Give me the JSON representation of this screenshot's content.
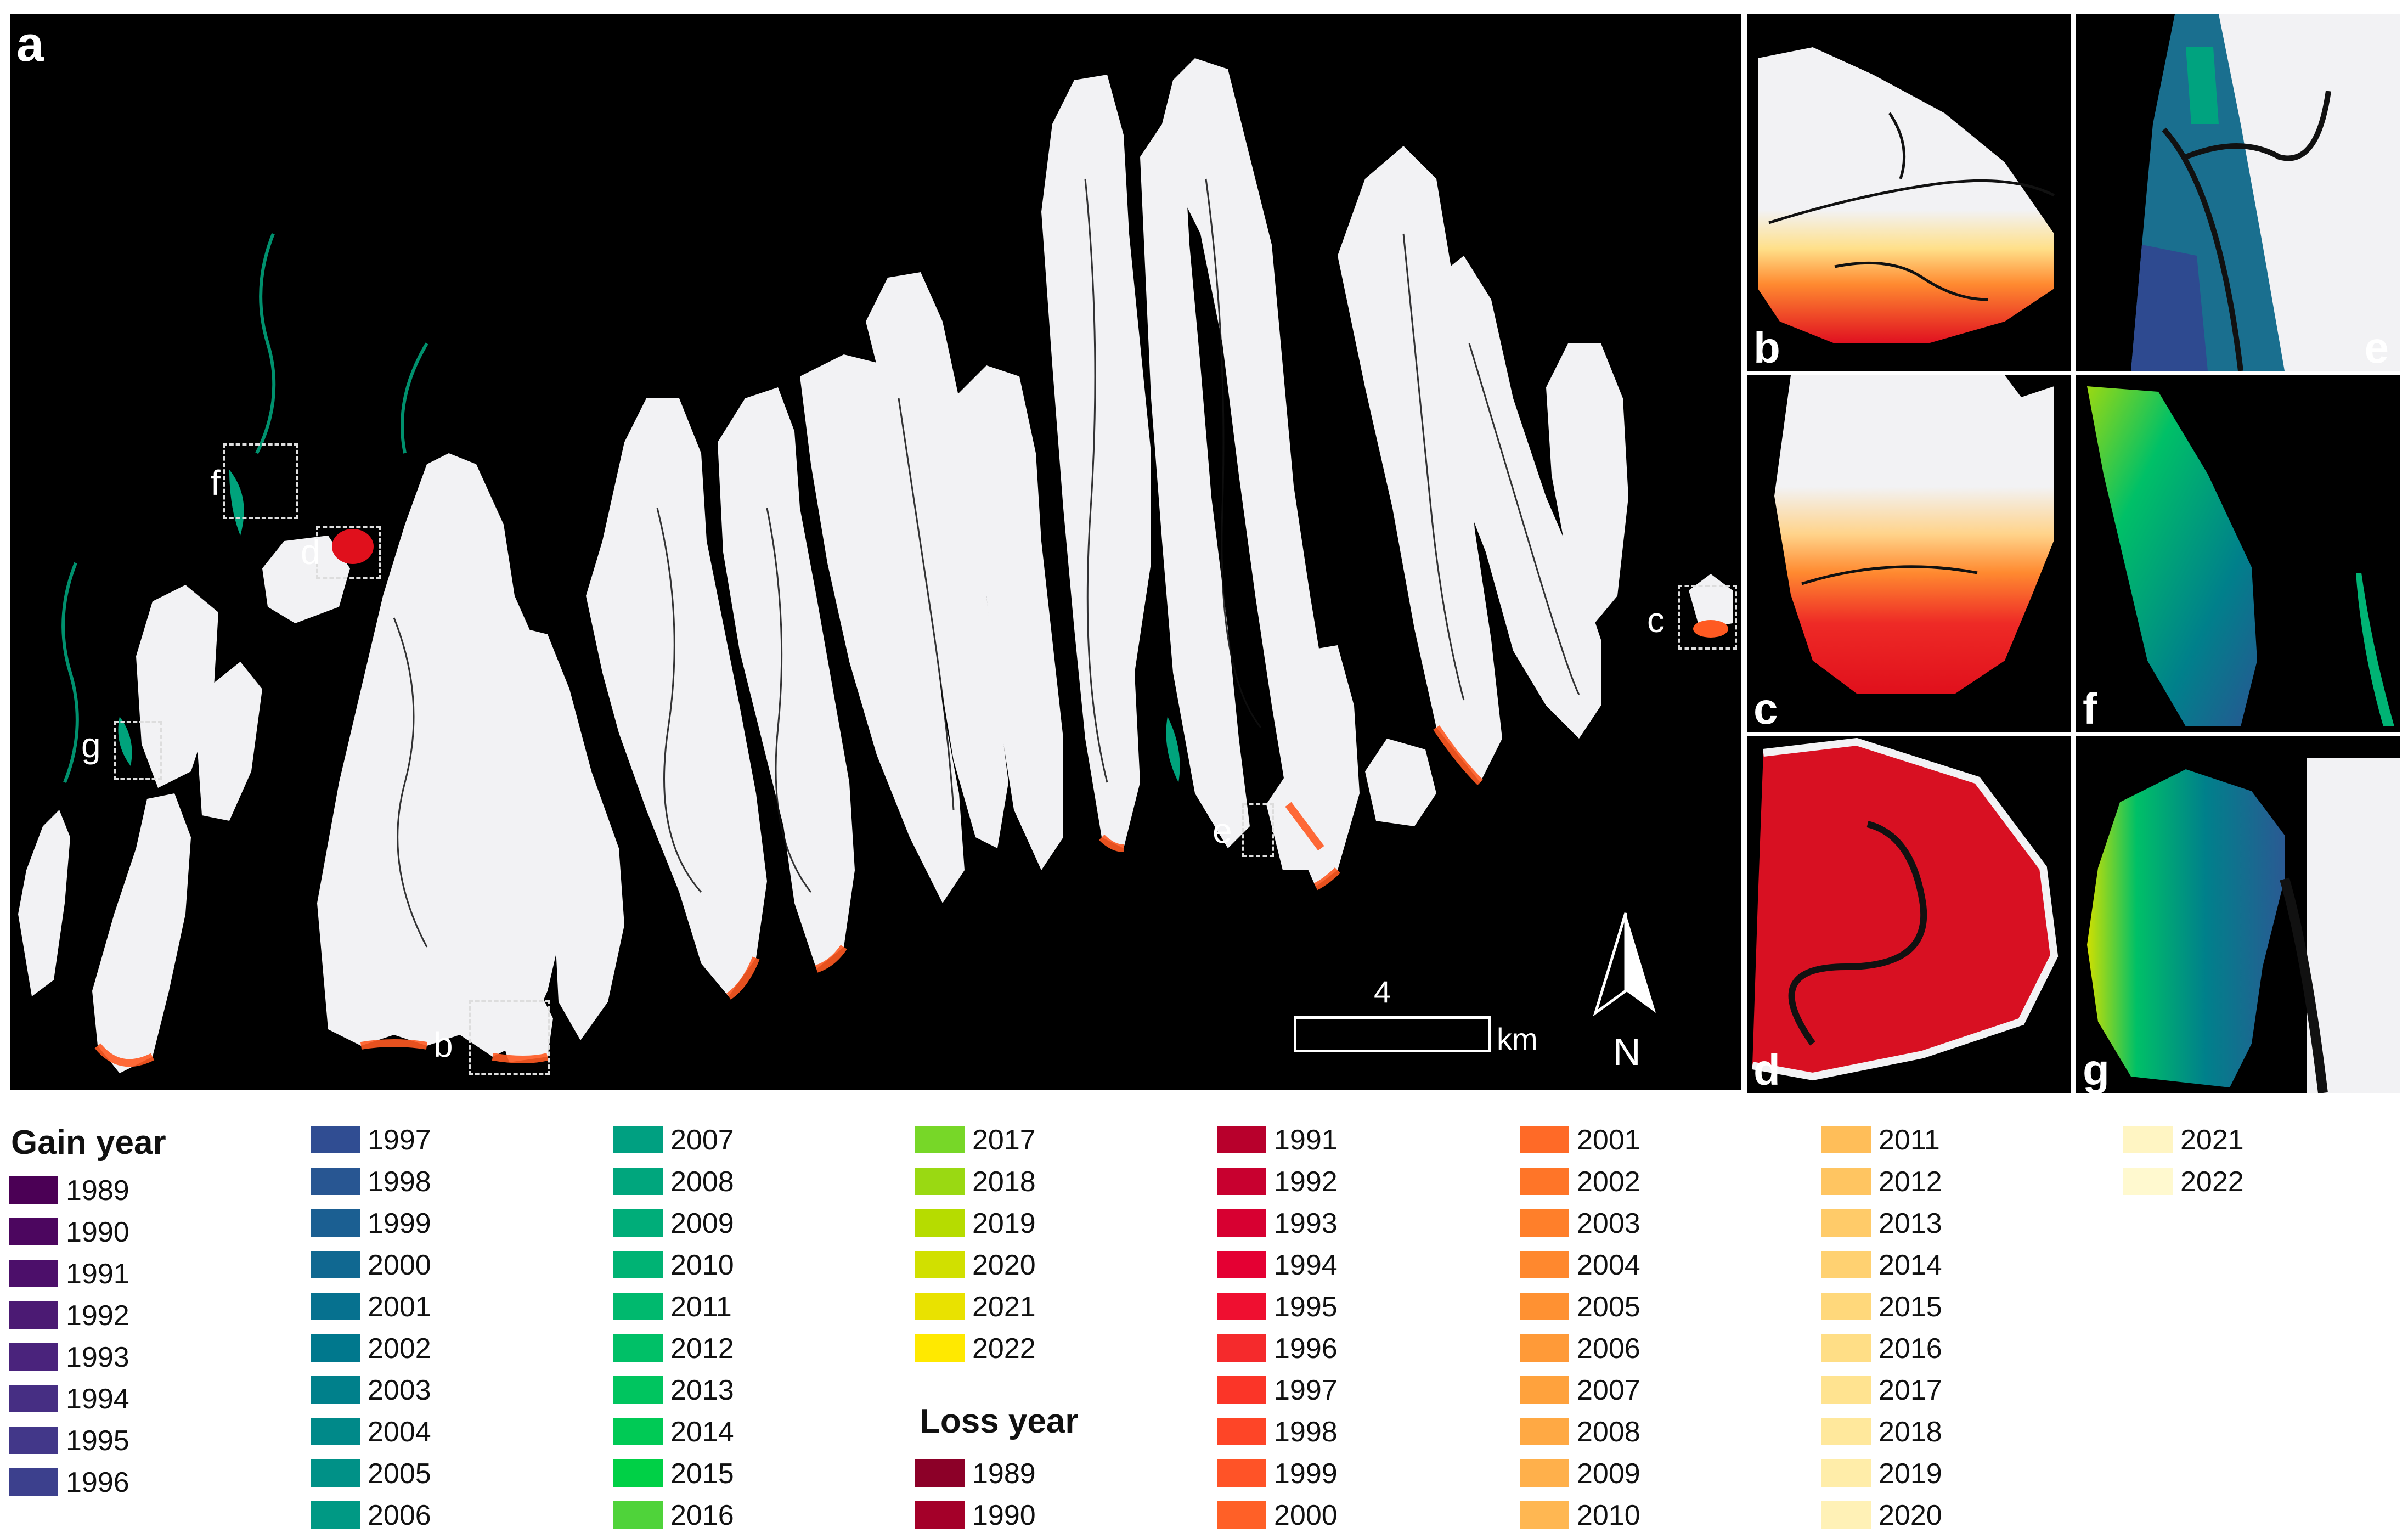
{
  "panel_labels": {
    "main": "a",
    "b": "b",
    "c": "c",
    "d": "d",
    "e": "e",
    "f": "f",
    "g": "g"
  },
  "scale_bar": {
    "value": "4",
    "unit": "km"
  },
  "north_arrow": {
    "label": "N"
  },
  "legend": {
    "gain_title": "Gain year",
    "loss_title": "Loss year",
    "gain_items": [
      {
        "year": "1989",
        "color": "#4b0055"
      },
      {
        "year": "1990",
        "color": "#4c065f"
      },
      {
        "year": "1991",
        "color": "#4c0f6a"
      },
      {
        "year": "1992",
        "color": "#4b1a73"
      },
      {
        "year": "1993",
        "color": "#4a237c"
      },
      {
        "year": "1994",
        "color": "#462e83"
      },
      {
        "year": "1995",
        "color": "#423789"
      },
      {
        "year": "1996",
        "color": "#3c408d"
      },
      {
        "year": "1997",
        "color": "#304d92"
      },
      {
        "year": "1998",
        "color": "#285692"
      },
      {
        "year": "1999",
        "color": "#1b5f92"
      },
      {
        "year": "2000",
        "color": "#106891"
      },
      {
        "year": "2001",
        "color": "#06718f"
      },
      {
        "year": "2002",
        "color": "#00788d"
      },
      {
        "year": "2003",
        "color": "#00808b"
      },
      {
        "year": "2004",
        "color": "#008989"
      },
      {
        "year": "2005",
        "color": "#009187"
      },
      {
        "year": "2006",
        "color": "#009984"
      },
      {
        "year": "2007",
        "color": "#00a081"
      },
      {
        "year": "2008",
        "color": "#00a67d"
      },
      {
        "year": "2009",
        "color": "#00ad79"
      },
      {
        "year": "2010",
        "color": "#00b374"
      },
      {
        "year": "2011",
        "color": "#00b96e"
      },
      {
        "year": "2012",
        "color": "#00c067"
      },
      {
        "year": "2013",
        "color": "#00c55f"
      },
      {
        "year": "2014",
        "color": "#00ca55"
      },
      {
        "year": "2015",
        "color": "#00d046"
      },
      {
        "year": "2016",
        "color": "#4fd33a"
      },
      {
        "year": "2017",
        "color": "#77d728"
      },
      {
        "year": "2018",
        "color": "#9ad912"
      },
      {
        "year": "2019",
        "color": "#b6dc00"
      },
      {
        "year": "2020",
        "color": "#d1e000"
      },
      {
        "year": "2021",
        "color": "#e9e200"
      },
      {
        "year": "2022",
        "color": "#ffe900"
      }
    ],
    "loss_items": [
      {
        "year": "1989",
        "color": "#8c0028"
      },
      {
        "year": "1990",
        "color": "#a40029"
      },
      {
        "year": "1991",
        "color": "#b8002c"
      },
      {
        "year": "1992",
        "color": "#c8002f"
      },
      {
        "year": "1993",
        "color": "#d70031"
      },
      {
        "year": "1994",
        "color": "#e40033"
      },
      {
        "year": "1995",
        "color": "#ef0f30"
      },
      {
        "year": "1996",
        "color": "#f52a2c"
      },
      {
        "year": "1997",
        "color": "#fb3528"
      },
      {
        "year": "1998",
        "color": "#fe4527"
      },
      {
        "year": "1999",
        "color": "#ff5327"
      },
      {
        "year": "2000",
        "color": "#ff6027"
      },
      {
        "year": "2001",
        "color": "#ff6a27"
      },
      {
        "year": "2002",
        "color": "#ff7528"
      },
      {
        "year": "2003",
        "color": "#ff7f2a"
      },
      {
        "year": "2004",
        "color": "#ff882e"
      },
      {
        "year": "2005",
        "color": "#ff9132"
      },
      {
        "year": "2006",
        "color": "#ff9a38"
      },
      {
        "year": "2007",
        "color": "#ffa23d"
      },
      {
        "year": "2008",
        "color": "#ffa944"
      },
      {
        "year": "2009",
        "color": "#ffb04b"
      },
      {
        "year": "2010",
        "color": "#ffb752"
      },
      {
        "year": "2011",
        "color": "#ffbe59"
      },
      {
        "year": "2012",
        "color": "#ffc561"
      },
      {
        "year": "2013",
        "color": "#ffcb69"
      },
      {
        "year": "2014",
        "color": "#ffd171"
      },
      {
        "year": "2015",
        "color": "#ffd87b"
      },
      {
        "year": "2016",
        "color": "#ffde86"
      },
      {
        "year": "2017",
        "color": "#ffe390"
      },
      {
        "year": "2018",
        "color": "#ffe89c"
      },
      {
        "year": "2019",
        "color": "#ffeda9"
      },
      {
        "year": "2020",
        "color": "#fff1b6"
      },
      {
        "year": "2021",
        "color": "#fff5c3"
      },
      {
        "year": "2022",
        "color": "#fff9cf"
      }
    ]
  }
}
